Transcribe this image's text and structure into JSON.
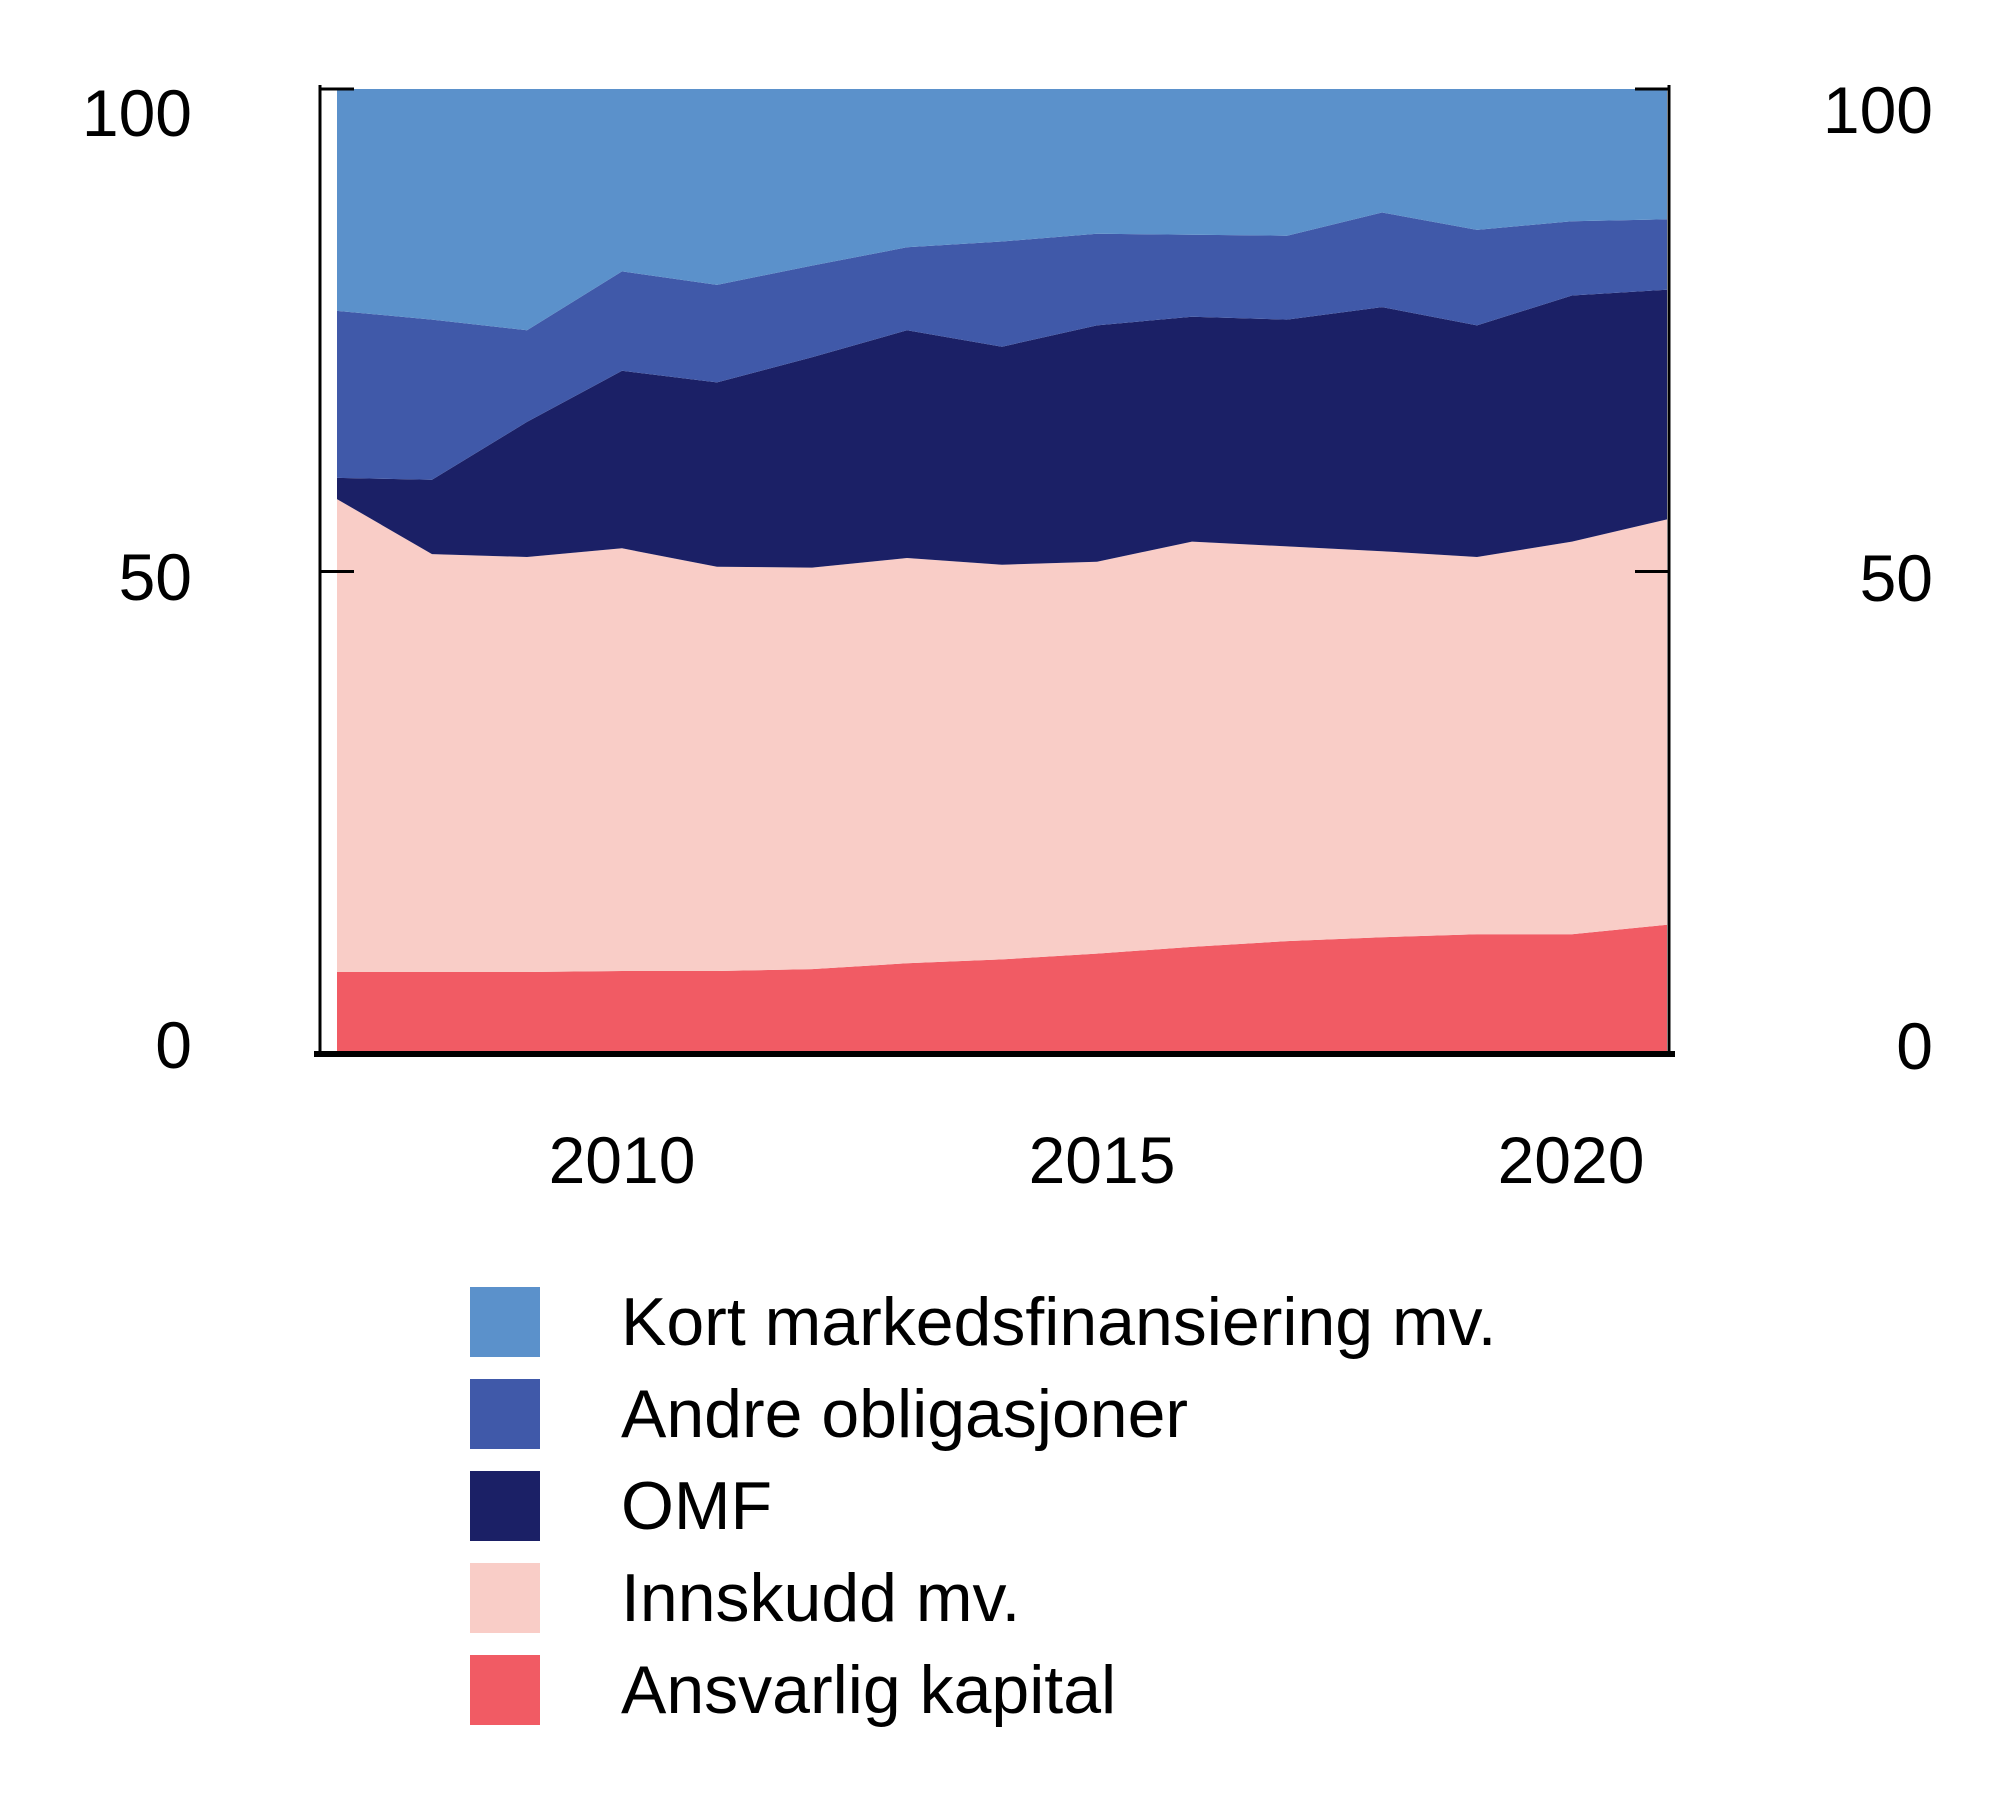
{
  "axes": {
    "y_left": [
      "100",
      "50",
      "0"
    ],
    "y_right": [
      "100",
      "50",
      "0"
    ],
    "x": [
      "2010",
      "2015",
      "2020"
    ]
  },
  "chart_data": {
    "type": "area",
    "stacked": true,
    "title": "",
    "xlabel": "",
    "ylabel": "",
    "x": [
      2007,
      2008,
      2009,
      2010,
      2011,
      2012,
      2013,
      2014,
      2015,
      2016,
      2017,
      2018,
      2019,
      2020,
      2021
    ],
    "xticks": [
      2010,
      2015,
      2020
    ],
    "ylim": [
      0,
      100
    ],
    "yticks": [
      0,
      50,
      100
    ],
    "grid": false,
    "legend_position": "bottom-left",
    "axis_color": "#000000",
    "series": [
      {
        "name": "Ansvarlig kapital",
        "color": "#F15B64",
        "values": [
          8.5,
          8.5,
          8.5,
          8.6,
          8.6,
          8.8,
          9.4,
          9.8,
          10.4,
          11.1,
          11.7,
          12.1,
          12.4,
          12.4,
          13.4
        ]
      },
      {
        "name": "Innskudd mv.",
        "color": "#F9CDC7",
        "values": [
          49.0,
          43.3,
          43.0,
          43.8,
          41.9,
          41.6,
          42.0,
          40.9,
          40.6,
          42.0,
          40.9,
          40.0,
          39.1,
          40.7,
          42.0
        ]
      },
      {
        "name": "OMF",
        "color": "#1B2066",
        "values": [
          2.2,
          7.7,
          14.0,
          18.4,
          19.1,
          21.8,
          23.6,
          22.6,
          24.5,
          23.3,
          23.5,
          25.3,
          24.0,
          25.5,
          23.8
        ]
      },
      {
        "name": "Andre obligasjoner",
        "color": "#4059A9",
        "values": [
          17.3,
          16.6,
          9.5,
          10.3,
          10.1,
          9.5,
          8.6,
          10.9,
          9.5,
          8.5,
          8.7,
          9.8,
          9.9,
          7.7,
          7.3
        ]
      },
      {
        "name": "Kort markedsfinansiering mv.",
        "color": "#5B91CB",
        "values": [
          23.0,
          23.9,
          25.0,
          18.9,
          20.3,
          18.3,
          16.4,
          15.8,
          15.0,
          15.1,
          15.2,
          12.8,
          14.6,
          13.7,
          13.5
        ]
      }
    ],
    "legend": [
      {
        "label": "Kort markedsfinansiering mv.",
        "color": "#5B91CB"
      },
      {
        "label": "Andre obligasjoner",
        "color": "#4059A9"
      },
      {
        "label": "OMF",
        "color": "#1B2066"
      },
      {
        "label": "Innskudd mv.",
        "color": "#F9CDC7"
      },
      {
        "label": "Ansvarlig kapital",
        "color": "#F15B64"
      }
    ]
  }
}
